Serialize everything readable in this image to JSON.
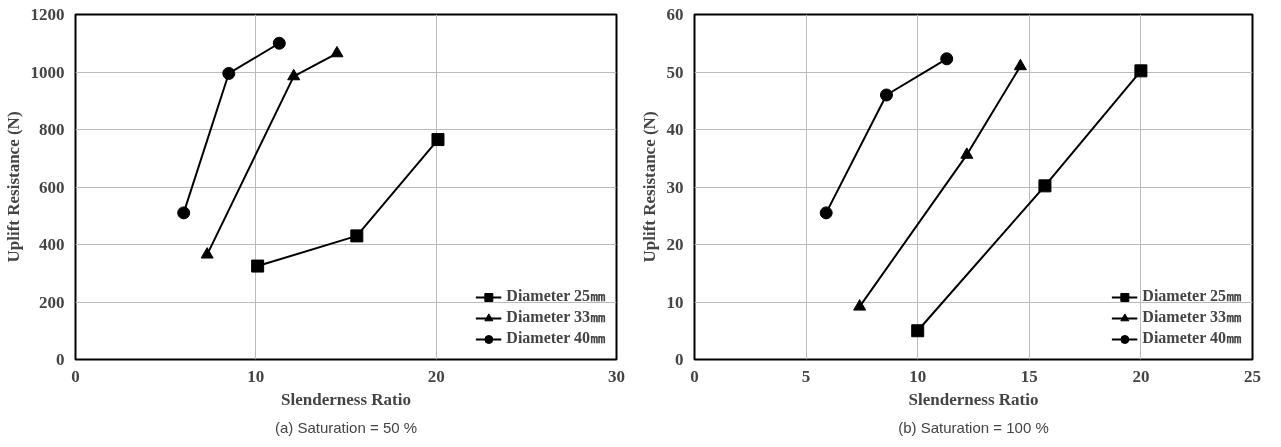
{
  "chart_data": [
    {
      "type": "line",
      "xlabel": "Slenderness Ratio",
      "ylabel": "Uplift Resistance (N)",
      "annotations": [
        "(a) Saturation = 50 %"
      ],
      "xlim": [
        0,
        30
      ],
      "xticks": [
        0,
        10,
        20,
        30
      ],
      "ylim": [
        0,
        1200
      ],
      "yticks": [
        0,
        200,
        400,
        600,
        800,
        1000,
        1200
      ],
      "grid": true,
      "legend": "bottom right",
      "series": [
        {
          "name": "Diameter 25㎜",
          "color": "#000000",
          "marker": "square",
          "x": [
            10.1,
            15.6,
            20.1
          ],
          "values": [
            325,
            430,
            765
          ]
        },
        {
          "name": "Diameter 33㎜",
          "color": "#000000",
          "marker": "triangle",
          "x": [
            7.3,
            12.1,
            14.5
          ],
          "values": [
            365,
            985,
            1065
          ]
        },
        {
          "name": "Diameter 40㎜",
          "color": "#000000",
          "marker": "circle",
          "x": [
            6.0,
            8.5,
            11.3
          ],
          "values": [
            510,
            995,
            1100
          ]
        }
      ]
    },
    {
      "type": "line",
      "xlabel": "Slenderness Ratio",
      "ylabel": "Uplift Resistance (N)",
      "annotations": [
        "(b) Saturation = 100 %"
      ],
      "xlim": [
        0,
        25
      ],
      "xticks": [
        0,
        5,
        10,
        15,
        20,
        25
      ],
      "ylim": [
        0,
        60
      ],
      "yticks": [
        0,
        10,
        20,
        30,
        40,
        50,
        60
      ],
      "grid": true,
      "legend": "bottom right",
      "series": [
        {
          "name": "Diameter 25㎜",
          "color": "#000000",
          "marker": "square",
          "x": [
            10.0,
            15.7,
            20.0
          ],
          "values": [
            5,
            30.2,
            50.2
          ]
        },
        {
          "name": "Diameter 33㎜",
          "color": "#000000",
          "marker": "triangle",
          "x": [
            7.4,
            12.2,
            14.6
          ],
          "values": [
            9.2,
            35.6,
            51
          ]
        },
        {
          "name": "Diameter 40㎜",
          "color": "#000000",
          "marker": "circle",
          "x": [
            5.9,
            8.6,
            11.3
          ],
          "values": [
            25.5,
            46,
            52.3
          ]
        }
      ]
    }
  ]
}
